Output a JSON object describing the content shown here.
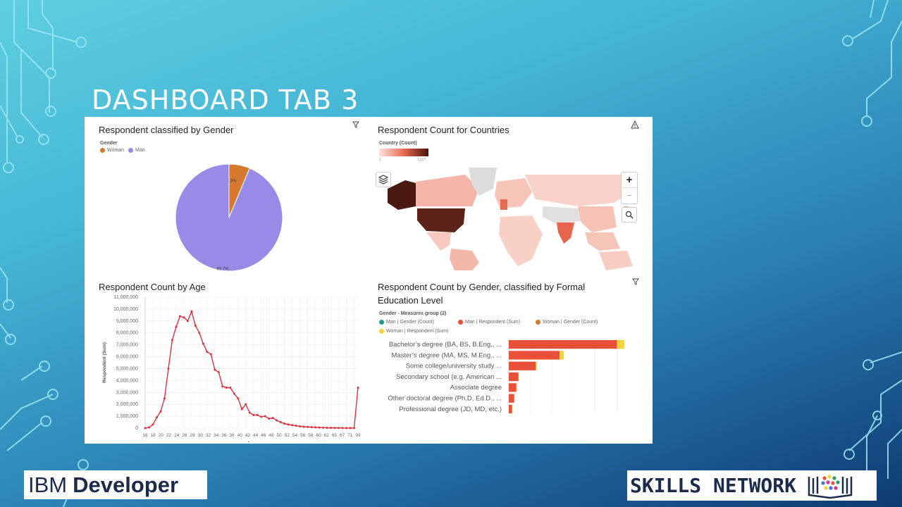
{
  "slide": {
    "title": "DASHBOARD TAB 3"
  },
  "footer": {
    "brand_left_a": "IBM",
    "brand_left_b": "Developer",
    "brand_right": "SKILLS NETWORK"
  },
  "panels": {
    "gender": {
      "title": "Respondent classified by Gender",
      "legend_title": "Gender",
      "legend": [
        {
          "label": "Woman",
          "color": "#d6782d"
        },
        {
          "label": "Man",
          "color": "#9a8ae8"
        }
      ],
      "icon": "filter-icon"
    },
    "countries": {
      "title": "Respondent Count for Countries",
      "legend_title": "Country (Count)",
      "legend_min": "1",
      "legend_max": "3,127",
      "icon": "warning-icon",
      "zoom_in": "+",
      "zoom_out": "−"
    },
    "age": {
      "title": "Respondent Count by Age"
    },
    "education": {
      "title_line1": "Respondent Count by Gender, classified by Formal",
      "title_line2": "Education Level",
      "legend_title": "Gender - Measures group (2)",
      "legend": [
        {
          "label": "Man | Gender (Count)",
          "color": "#1e9a9a"
        },
        {
          "label": "Man | Respondent (Sum)",
          "color": "#e8503a"
        },
        {
          "label": "Woman | Gender (Count)",
          "color": "#d6782d"
        },
        {
          "label": "Woman | Respondent (Sum)",
          "color": "#f7d23a"
        }
      ],
      "icon": "filter-icon"
    }
  },
  "chart_data": [
    {
      "type": "pie",
      "title": "Respondent classified by Gender",
      "categories": [
        "Woman",
        "Man"
      ],
      "values": [
        6.3,
        93.7
      ],
      "labels": [
        "6.3%",
        "93.7%"
      ],
      "colors": [
        "#d6782d",
        "#9a8ae8"
      ],
      "legend_title": "Gender"
    },
    {
      "type": "line",
      "title": "Respondent Count by Age",
      "xlabel": "Age",
      "ylabel": "Respondent (Sum)",
      "ylim": [
        0,
        11000000
      ],
      "yticks": [
        "0",
        "1,000,000",
        "2,000,000",
        "3,000,000",
        "4,000,000",
        "5,000,000",
        "6,000,000",
        "7,000,000",
        "8,000,000",
        "9,000,000",
        "10,000,000",
        "11,000,000"
      ],
      "xtick_labels": [
        "16",
        "18",
        "20",
        "22",
        "24",
        "26",
        "28",
        "30",
        "32",
        "34",
        "36",
        "38",
        "40",
        "42",
        "44",
        "46",
        "48",
        "50",
        "52",
        "54",
        "56",
        "58",
        "60",
        "62",
        "65",
        "67",
        "71",
        "99"
      ],
      "series": [
        {
          "color": "#d9333f",
          "values": [
            0,
            60000,
            300000,
            900000,
            1400000,
            2500000,
            5000000,
            7400000,
            8500000,
            9400000,
            9300000,
            9000000,
            9800000,
            8600000,
            8000000,
            7100000,
            6400000,
            6200000,
            4900000,
            4700000,
            3500000,
            3400000,
            3400000,
            2900000,
            2500000,
            1600000,
            2000000,
            1300000,
            1100000,
            1100000,
            950000,
            1000000,
            800000,
            850000,
            650000,
            500000,
            380000,
            300000,
            250000,
            200000,
            150000,
            120000,
            100000,
            80000,
            70000,
            50000,
            40000,
            30000,
            25000,
            20000,
            15000,
            12000,
            10000,
            8000,
            6000,
            3400000
          ]
        }
      ]
    },
    {
      "type": "bar",
      "orientation": "horizontal",
      "stacked": true,
      "title": "Respondent Count by Gender, classified by Formal Education Level",
      "categories": [
        "Bachelor’s degree (BA, BS, B.Eng., ...",
        "Master’s degree (MA, MS, M.Eng., ...",
        "Some college/university study ...",
        "Secondary school (e.g. American ...",
        "Associate degree",
        "Other doctoral degree (Ph.D, Ed.D., ...",
        "Professional degree (JD, MD, etc.)"
      ],
      "series": [
        {
          "name": "Man | Respondent (Sum)",
          "color": "#e8503a",
          "values": [
            100,
            47,
            25,
            9,
            7,
            5,
            3
          ]
        },
        {
          "name": "Woman | Respondent (Sum)",
          "color": "#f7d23a",
          "values": [
            7,
            4,
            1,
            0.3,
            0.3,
            0.3,
            0.2
          ]
        }
      ],
      "xlim": [
        0,
        120
      ]
    }
  ]
}
